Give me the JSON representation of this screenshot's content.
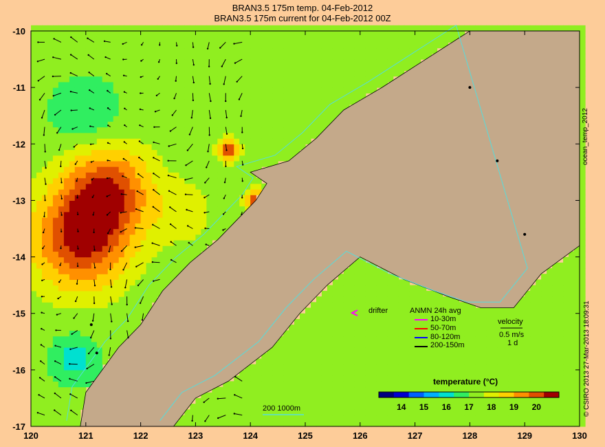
{
  "titles": {
    "line1": "BRAN3.5 175m temp. 04-Feb-2012",
    "line2": "BRAN3.5 175m current for 04-Feb-2012 00Z"
  },
  "side_labels": {
    "right_top": "ocean_temp_2012",
    "right_bottom": "© CSIRO 2013   27-Mar-2013 18:09:31"
  },
  "legend": {
    "drifter_label": "drifter",
    "anmn_title": "ANMN 24h avg",
    "anmn_items": [
      {
        "label": "10-30m",
        "color": "#ff00ff"
      },
      {
        "label": "50-70m",
        "color": "#ff0000"
      },
      {
        "label": "80-120m",
        "color": "#0000ff"
      },
      {
        "label": "200-150m",
        "color": "#000000"
      }
    ],
    "velocity_title": "velocity",
    "velocity_scale": "0.5 m/s",
    "velocity_time": "1 d",
    "contour_label": "200  1000m"
  },
  "colors": {
    "land": "#c4a98a",
    "background": "#fdcc99",
    "contour": "#55dddd"
  },
  "chart_data": {
    "type": "heatmap",
    "title": "BRAN3.5 175m temp. 04-Feb-2012",
    "subtitle": "BRAN3.5 175m current for 04-Feb-2012 00Z",
    "xlabel": "",
    "ylabel": "",
    "xlim": [
      120,
      130
    ],
    "ylim": [
      -17,
      -10
    ],
    "x_ticks": [
      "120",
      "121",
      "122",
      "123",
      "124",
      "125",
      "126",
      "127",
      "128",
      "129",
      "130"
    ],
    "y_ticks": [
      "-10",
      "-11",
      "-12",
      "-13",
      "-14",
      "-15",
      "-16",
      "-17"
    ],
    "colorbar": {
      "label": "temperature (°C)",
      "range": [
        13,
        21
      ],
      "ticks": [
        "14",
        "15",
        "16",
        "17",
        "18",
        "19",
        "20"
      ],
      "colors": [
        "#000080",
        "#0000d0",
        "#0060ff",
        "#00b0ff",
        "#00e0d0",
        "#30ee60",
        "#90ee20",
        "#e0f000",
        "#ffd000",
        "#ff9000",
        "#e05000",
        "#a00000"
      ]
    },
    "temperature_centers": [
      {
        "lon": 120.9,
        "lat": -13.7,
        "temp": 20.4,
        "spread": 0.9
      },
      {
        "lon": 121.4,
        "lat": -12.8,
        "temp": 20.0,
        "spread": 0.8
      },
      {
        "lon": 123.6,
        "lat": -12.1,
        "temp": 20.5,
        "spread": 0.2
      },
      {
        "lon": 124.1,
        "lat": -13.0,
        "temp": 20.2,
        "spread": 0.2
      },
      {
        "lon": 121.0,
        "lat": -11.5,
        "temp": 16.3,
        "spread": 0.6
      },
      {
        "lon": 120.8,
        "lat": -15.8,
        "temp": 16.0,
        "spread": 0.4
      },
      {
        "lon": 122.8,
        "lat": -13.2,
        "temp": 18.0,
        "spread": 0.6
      }
    ],
    "coast_polygon": [
      [
        120.9,
        -17.0
      ],
      [
        121.0,
        -16.4
      ],
      [
        121.3,
        -16.0
      ],
      [
        121.6,
        -15.6
      ],
      [
        122.0,
        -15.2
      ],
      [
        122.4,
        -14.6
      ],
      [
        122.9,
        -14.1
      ],
      [
        123.4,
        -13.7
      ],
      [
        123.8,
        -13.3
      ],
      [
        124.1,
        -13.0
      ],
      [
        124.3,
        -12.7
      ],
      [
        124.0,
        -12.5
      ],
      [
        124.7,
        -12.3
      ],
      [
        125.2,
        -11.9
      ],
      [
        125.7,
        -11.4
      ],
      [
        126.4,
        -11.0
      ],
      [
        127.2,
        -10.5
      ],
      [
        128.0,
        -10.0
      ],
      [
        130,
        -10.0
      ],
      [
        130,
        -13.8
      ],
      [
        129.3,
        -14.3
      ],
      [
        128.8,
        -14.9
      ],
      [
        128.2,
        -14.9
      ],
      [
        127.6,
        -14.7
      ],
      [
        126.8,
        -14.4
      ],
      [
        126.0,
        -14.0
      ],
      [
        125.4,
        -14.5
      ],
      [
        124.9,
        -15.0
      ],
      [
        124.4,
        -15.6
      ],
      [
        123.6,
        -16.2
      ],
      [
        123.0,
        -16.5
      ],
      [
        122.6,
        -17.0
      ]
    ],
    "island_points": [
      {
        "lon": 128.0,
        "lat": -11.0
      },
      {
        "lon": 128.5,
        "lat": -12.3
      },
      {
        "lon": 129.0,
        "lat": -13.6
      },
      {
        "lon": 121.2,
        "lat": -15.7
      },
      {
        "lon": 121.1,
        "lat": -15.2
      }
    ]
  }
}
